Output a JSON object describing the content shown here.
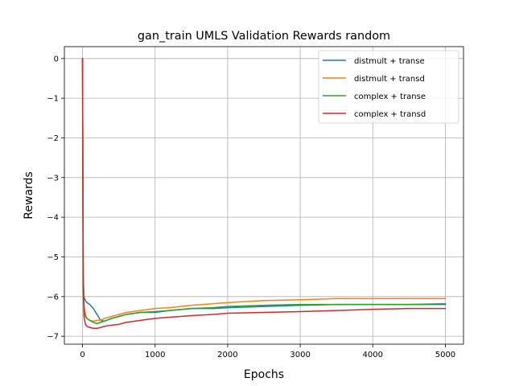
{
  "chart_data": {
    "type": "line",
    "title": "gan_train UMLS Validation Rewards random",
    "xlabel": "Epochs",
    "ylabel": "Rewards",
    "xlim": [
      -250,
      5250
    ],
    "ylim": [
      -7.2,
      0.3
    ],
    "xticks": [
      0,
      1000,
      2000,
      3000,
      4000,
      5000
    ],
    "xtick_labels": [
      "0",
      "1000",
      "2000",
      "3000",
      "4000",
      "5000"
    ],
    "yticks": [
      0,
      -1,
      -2,
      -3,
      -4,
      -5,
      -6,
      -7
    ],
    "ytick_labels": [
      "0",
      "−1",
      "−2",
      "−3",
      "−4",
      "−5",
      "−6",
      "−7"
    ],
    "grid": true,
    "legend_position": "top-right",
    "series": [
      {
        "name": "distmult + transe",
        "color": "#1f77b4",
        "x": [
          0,
          5,
          10,
          20,
          40,
          60,
          100,
          150,
          200,
          250,
          300,
          400,
          500,
          600,
          800,
          1000,
          1200,
          1500,
          1800,
          2000,
          2500,
          3000,
          3500,
          4000,
          4500,
          5000
        ],
        "y": [
          0,
          -3.0,
          -5.5,
          -6.0,
          -6.1,
          -6.15,
          -6.2,
          -6.3,
          -6.45,
          -6.6,
          -6.62,
          -6.55,
          -6.5,
          -6.45,
          -6.4,
          -6.4,
          -6.35,
          -6.3,
          -6.3,
          -6.28,
          -6.25,
          -6.22,
          -6.2,
          -6.2,
          -6.2,
          -6.2
        ]
      },
      {
        "name": "distmult + transd",
        "color": "#ff7f0e",
        "x": [
          0,
          5,
          10,
          20,
          40,
          60,
          100,
          150,
          200,
          250,
          300,
          400,
          500,
          600,
          800,
          1000,
          1200,
          1500,
          1800,
          2000,
          2500,
          3000,
          3500,
          4000,
          4500,
          5000
        ],
        "y": [
          0,
          -3.0,
          -5.6,
          -6.2,
          -6.45,
          -6.55,
          -6.6,
          -6.62,
          -6.6,
          -6.6,
          -6.55,
          -6.5,
          -6.45,
          -6.4,
          -6.35,
          -6.3,
          -6.28,
          -6.22,
          -6.18,
          -6.15,
          -6.1,
          -6.08,
          -6.05,
          -6.05,
          -6.05,
          -6.05
        ]
      },
      {
        "name": "complex + transe",
        "color": "#2ca02c",
        "x": [
          0,
          5,
          10,
          20,
          40,
          60,
          100,
          150,
          200,
          250,
          300,
          400,
          500,
          600,
          800,
          1000,
          1200,
          1500,
          1800,
          2000,
          2500,
          3000,
          3500,
          4000,
          4500,
          5000
        ],
        "y": [
          0,
          -3.0,
          -5.7,
          -6.3,
          -6.5,
          -6.55,
          -6.6,
          -6.65,
          -6.68,
          -6.65,
          -6.62,
          -6.55,
          -6.5,
          -6.45,
          -6.4,
          -6.38,
          -6.35,
          -6.3,
          -6.28,
          -6.25,
          -6.22,
          -6.2,
          -6.2,
          -6.2,
          -6.2,
          -6.18
        ]
      },
      {
        "name": "complex + transd",
        "color": "#d62728",
        "x": [
          0,
          5,
          10,
          20,
          40,
          60,
          100,
          150,
          200,
          250,
          300,
          400,
          500,
          600,
          800,
          1000,
          1200,
          1500,
          1800,
          2000,
          2500,
          3000,
          3500,
          4000,
          4500,
          5000
        ],
        "y": [
          0,
          -3.0,
          -5.8,
          -6.5,
          -6.7,
          -6.75,
          -6.78,
          -6.8,
          -6.8,
          -6.78,
          -6.75,
          -6.72,
          -6.7,
          -6.65,
          -6.6,
          -6.55,
          -6.52,
          -6.48,
          -6.45,
          -6.42,
          -6.4,
          -6.38,
          -6.35,
          -6.32,
          -6.3,
          -6.3
        ]
      }
    ]
  }
}
